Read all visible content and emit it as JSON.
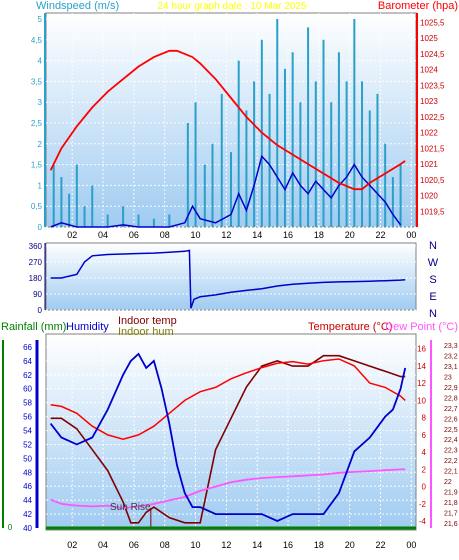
{
  "header": {
    "wind_title": "Windspeed (m/s)",
    "center_title": "24 hour graph  date : 10 Mar 2025",
    "baro_title": "Barometer (hpa)"
  },
  "direction_labels": [
    "N",
    "W",
    "S",
    "E",
    "N"
  ],
  "bottom_header": {
    "rain": "Rainfall (mm)",
    "humidity": "Humidity",
    "indoor_temp": "Indoor temp",
    "indoor_hum": "Indoor hum",
    "temp": "Temperature (°C)",
    "dew": "Dew Point (°C)"
  },
  "annotation": "Sun Rise",
  "colors": {
    "wind_axis": "#2aa0c8",
    "baro": "#ff0000",
    "center_title": "#ffff00",
    "humidity": "#0000cc",
    "indoor_temp": "#800000",
    "indoor_hum": "#808000",
    "rain": "#008000",
    "dew": "#ff55ff"
  },
  "chart_data": [
    {
      "type": "line",
      "title": "24 hour graph  date : 10 Mar 2025",
      "x_ticks": [
        "02",
        "04",
        "06",
        "08",
        "10",
        "12",
        "14",
        "16",
        "18",
        "20",
        "22",
        "00"
      ],
      "left_axis": {
        "label": "Windspeed (m/s)",
        "range": [
          0,
          5
        ],
        "ticks": [
          "0",
          "0,5",
          "1",
          "1,5",
          "2",
          "2,5",
          "3",
          "3,5",
          "4",
          "4,5",
          "5"
        ]
      },
      "right_axis": {
        "label": "Barometer (hpa)",
        "range": [
          1019,
          1025.8
        ],
        "ticks": [
          "1019,5",
          "1020",
          "1020,5",
          "1021",
          "1021,5",
          "1022",
          "1022,5",
          "1023",
          "1023,5",
          "1024",
          "1024,5",
          "1025",
          "1025,5"
        ]
      },
      "series": [
        {
          "name": "Barometer (hpa)",
          "color": "#ff0000",
          "x": [
            0.3,
            1,
            2,
            3,
            4,
            5,
            6,
            7,
            8,
            8.5,
            9,
            9.5,
            10,
            11,
            12,
            13,
            14,
            15,
            16,
            17,
            18,
            19,
            20,
            20.5,
            21,
            22,
            23,
            23.3
          ],
          "y": [
            1020.8,
            1021.5,
            1022.2,
            1022.8,
            1023.3,
            1023.7,
            1024.1,
            1024.4,
            1024.6,
            1024.6,
            1024.5,
            1024.4,
            1024.2,
            1023.7,
            1023.1,
            1022.5,
            1022,
            1021.6,
            1021.3,
            1021,
            1020.7,
            1020.4,
            1020.2,
            1020.2,
            1020.4,
            1020.7,
            1021,
            1021.1
          ]
        },
        {
          "name": "Wind average",
          "color": "#0000cc",
          "x": [
            0.3,
            1,
            2,
            3,
            4,
            5,
            6,
            7,
            8,
            9,
            9.5,
            10,
            11,
            12,
            12.5,
            13,
            13.5,
            14,
            14.5,
            15,
            15.5,
            16,
            16.5,
            17,
            17.5,
            18,
            18.5,
            19,
            19.5,
            20,
            20.5,
            21,
            21.5,
            22,
            22.5,
            23
          ],
          "y": [
            0,
            0.1,
            0,
            0,
            0,
            0.05,
            0,
            0,
            0,
            0.1,
            0.5,
            0.2,
            0.1,
            0.3,
            0.8,
            0.4,
            1.0,
            1.7,
            1.5,
            1.2,
            0.9,
            1.3,
            1.0,
            0.8,
            1.1,
            0.9,
            0.7,
            1.0,
            1.2,
            1.5,
            1.2,
            1.0,
            0.8,
            0.6,
            0.3,
            0.05
          ]
        },
        {
          "name": "Wind gust",
          "color": "#2aa0c8",
          "x": [
            0.5,
            1,
            1.5,
            2,
            2.5,
            3,
            4,
            5,
            6,
            7,
            8,
            9.2,
            9.7,
            10.3,
            10.8,
            11.4,
            12,
            12.5,
            13,
            13.5,
            14,
            14.5,
            15,
            15.5,
            16,
            16.5,
            17,
            17.5,
            18,
            18.5,
            19,
            19.5,
            20,
            20.5,
            21,
            21.5,
            22,
            22.5,
            23
          ],
          "y": [
            1.5,
            1.2,
            0.8,
            1.5,
            0.5,
            1.0,
            0.3,
            0.5,
            0.3,
            0.2,
            0.3,
            2.5,
            3.0,
            1.5,
            2.0,
            3.2,
            1.8,
            4.0,
            2.8,
            3.5,
            4.5,
            3.2,
            5.0,
            3.8,
            4.2,
            3.0,
            4.8,
            3.5,
            4.5,
            3.0,
            4.2,
            3.5,
            5.0,
            3.5,
            2.8,
            3.2,
            2.0,
            1.2,
            1.5
          ]
        }
      ]
    },
    {
      "type": "line",
      "title": "Wind direction",
      "x_ticks": [
        "02",
        "04",
        "06",
        "08",
        "10",
        "12",
        "14",
        "16",
        "18",
        "20",
        "22",
        "00"
      ],
      "left_axis": {
        "label": "",
        "range": [
          0,
          360
        ],
        "ticks": [
          "0",
          "90",
          "180",
          "270",
          "360"
        ]
      },
      "right_axis_labels": [
        "N",
        "W",
        "S",
        "E",
        "N"
      ],
      "series": [
        {
          "name": "Wind direction",
          "color": "#0000cc",
          "x": [
            0.3,
            1,
            2,
            2.5,
            3,
            4,
            5,
            6,
            7,
            8,
            9,
            9.3,
            9.4,
            9.6,
            10,
            11,
            12,
            13,
            14,
            15,
            16,
            17,
            18,
            19,
            20,
            21,
            22,
            23,
            23.3
          ],
          "y": [
            180,
            180,
            200,
            270,
            305,
            312,
            315,
            318,
            320,
            325,
            330,
            335,
            10,
            60,
            75,
            85,
            100,
            110,
            120,
            135,
            145,
            150,
            155,
            158,
            160,
            162,
            165,
            168,
            170
          ]
        }
      ]
    },
    {
      "type": "line",
      "title": "",
      "x_ticks": [
        "02",
        "04",
        "06",
        "08",
        "10",
        "12",
        "14",
        "16",
        "18",
        "20",
        "22",
        "00"
      ],
      "left_axis": {
        "label": "Humidity",
        "range": [
          40,
          67
        ],
        "ticks": [
          "40",
          "42",
          "44",
          "46",
          "48",
          "50",
          "52",
          "54",
          "56",
          "58",
          "60",
          "62",
          "64",
          "66"
        ]
      },
      "right_axis_temperature": {
        "label": "Temperature (°C)",
        "range": [
          -4.8,
          17
        ],
        "ticks": [
          "-4",
          "-2",
          "0",
          "2",
          "4",
          "6",
          "8",
          "10",
          "12",
          "14",
          "16"
        ]
      },
      "right_axis_indoor": {
        "label": "Indoor temp",
        "range": [
          21.55,
          23.35
        ],
        "ticks": [
          "21,6",
          "21,7",
          "21,8",
          "21,9",
          "22",
          "22,1",
          "22,2",
          "22,3",
          "22,4",
          "22,5",
          "22,6",
          "22,7",
          "22,8",
          "22,9",
          "23",
          "23,1",
          "23,2",
          "23,3"
        ]
      },
      "rain_axis": {
        "label": "Rainfall (mm)",
        "ticks": [
          "0"
        ]
      },
      "annotations": [
        {
          "text": "Sun Rise",
          "x": 6.8
        }
      ],
      "series": [
        {
          "name": "Humidity",
          "color": "#0000cc",
          "x": [
            0.3,
            1,
            2,
            3,
            4,
            5,
            5.5,
            6,
            6.5,
            7,
            7.5,
            8,
            8.5,
            9,
            9.5,
            10,
            11,
            12,
            13,
            14,
            15,
            16,
            17,
            18,
            19,
            20,
            21,
            22,
            22.5,
            23,
            23.3
          ],
          "y": [
            55,
            53,
            52,
            53,
            57,
            62,
            64,
            65,
            63,
            64,
            60,
            55,
            49,
            45,
            43,
            43,
            42,
            42,
            42,
            42,
            41,
            42,
            42,
            42,
            45,
            51,
            53,
            56,
            57,
            60,
            63
          ]
        },
        {
          "name": "Temperature (°C)",
          "color": "#ff0000",
          "x": [
            0.3,
            1,
            2,
            3,
            4,
            5,
            6,
            7,
            8,
            9,
            10,
            11,
            12,
            13,
            14,
            15,
            16,
            17,
            18,
            19,
            20,
            21,
            22,
            23,
            23.3
          ],
          "y": [
            9.5,
            9.3,
            8.5,
            7,
            6,
            5.5,
            6,
            7,
            8.5,
            10,
            11,
            11.5,
            12.5,
            13.2,
            13.8,
            14.3,
            14.5,
            14.2,
            14.6,
            14.8,
            14,
            12,
            11.5,
            10.5,
            10
          ]
        },
        {
          "name": "Dew Point (°C)",
          "color": "#ff55ff",
          "x": [
            0.3,
            1,
            2,
            3,
            4,
            5,
            6,
            7,
            8,
            9,
            10,
            11,
            12,
            13,
            14,
            15,
            16,
            17,
            18,
            19,
            20,
            21,
            22,
            23,
            23.3
          ],
          "y": [
            -1.5,
            -2,
            -2.2,
            -2.3,
            -2.2,
            -2.5,
            -2.3,
            -2,
            -1.6,
            -1.2,
            -0.5,
            0,
            0.5,
            0.8,
            1.0,
            1.1,
            1.2,
            1.3,
            1.4,
            1.6,
            1.7,
            1.8,
            1.9,
            2,
            2
          ]
        },
        {
          "name": "Indoor temp",
          "color": "#800000",
          "x": [
            0.3,
            1,
            2,
            3,
            4,
            5,
            5.5,
            6,
            6.5,
            7,
            8,
            9,
            10,
            11,
            12,
            13,
            14,
            15,
            16,
            17,
            18,
            19,
            20,
            21,
            22,
            23,
            23.3
          ],
          "y": [
            22.6,
            22.6,
            22.5,
            22.3,
            22.1,
            21.8,
            21.6,
            21.6,
            21.7,
            21.75,
            21.65,
            21.6,
            21.6,
            22.3,
            22.6,
            22.9,
            23.1,
            23.15,
            23.1,
            23.1,
            23.2,
            23.2,
            23.15,
            23.1,
            23.05,
            23.0,
            23.0
          ]
        }
      ]
    }
  ]
}
